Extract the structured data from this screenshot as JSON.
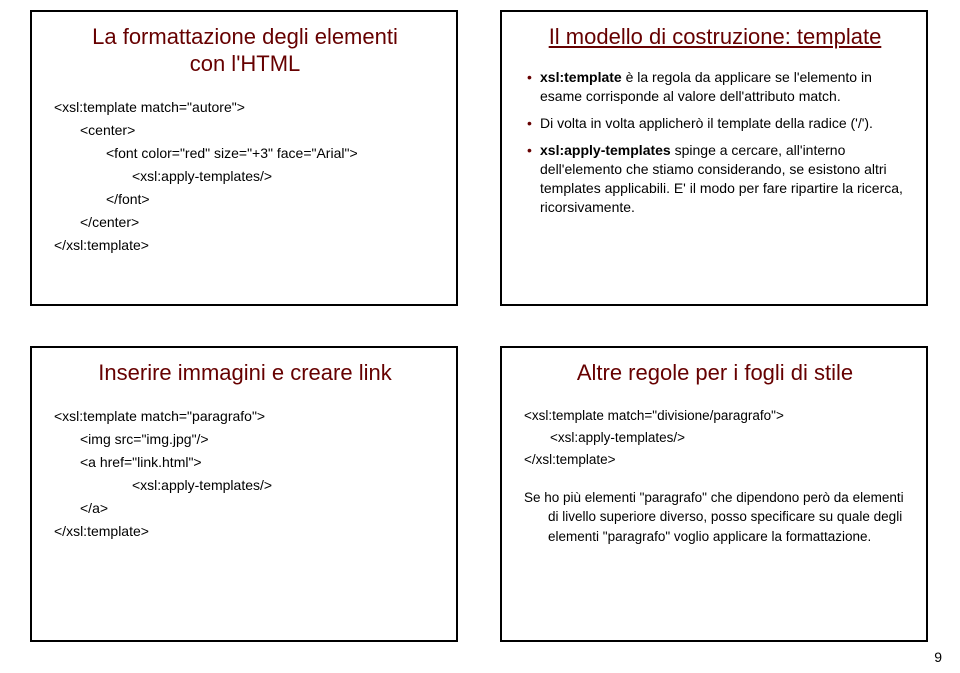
{
  "colors": {
    "title": "#660000",
    "text": "#000000",
    "border": "#000000",
    "background": "#ffffff",
    "bullet": "#660000"
  },
  "pagenum": "9",
  "tl": {
    "title_line1": "La formattazione degli elementi",
    "title_line2": "con l'HTML",
    "c0": "<xsl:template match=\"autore\">",
    "c1": "<center>",
    "c2": "<font color=\"red\" size=\"+3\" face=\"Arial\">",
    "c3": "<xsl:apply-templates/>",
    "c4": "</font>",
    "c5": "</center>",
    "c6": "</xsl:template>"
  },
  "tr": {
    "title": "Il modello di costruzione: template",
    "b1a": "xsl:template",
    "b1b": " è la regola da applicare se l'elemento in esame corrisponde al valore dell'attributo match.",
    "b2": "Di volta in volta applicherò il template della radice ('/').",
    "b3a": "xsl:apply-templates",
    "b3b": " spinge a cercare, all'interno dell'elemento che stiamo considerando, se esistono altri templates applicabili. E' il modo per fare ripartire la ricerca, ricorsivamente."
  },
  "bl": {
    "title": "Inserire immagini e creare link",
    "c0": "<xsl:template match=\"paragrafo\">",
    "c1": "<img src=\"img.jpg\"/>",
    "c2": "<a href=\"link.html\">",
    "c3": "<xsl:apply-templates/>",
    "c4": "</a>",
    "c5": "</xsl:template>"
  },
  "br": {
    "title": "Altre regole per i fogli di stile",
    "c0": "<xsl:template match=\"divisione/paragrafo\">",
    "c1": "<xsl:apply-templates/>",
    "c2": "</xsl:template>",
    "para": "Se ho più elementi \"paragrafo\" che dipendono però da elementi di livello superiore diverso, posso specificare su quale degli elementi \"paragrafo\" voglio applicare la formattazione."
  }
}
